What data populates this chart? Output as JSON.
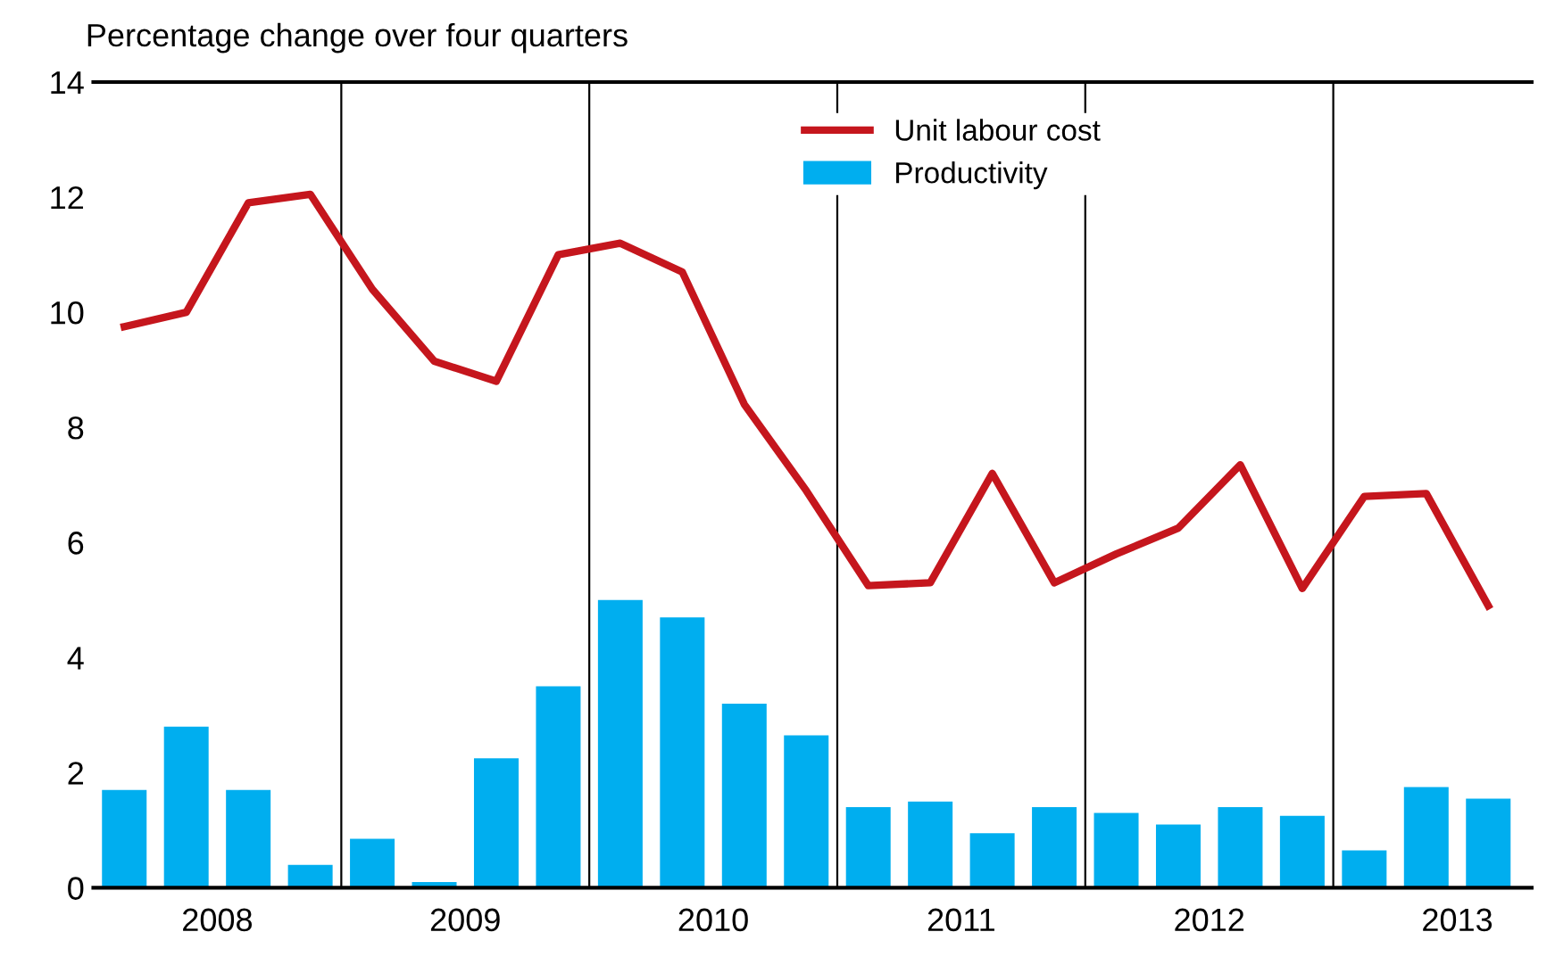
{
  "chart_data": {
    "type": "bar",
    "ylabel": "Percentage change over four quarters",
    "x": [
      2008.125,
      2008.375,
      2008.625,
      2008.875,
      2009.125,
      2009.375,
      2009.625,
      2009.875,
      2010.125,
      2010.375,
      2010.625,
      2010.875,
      2011.125,
      2011.375,
      2011.625,
      2011.875,
      2012.125,
      2012.375,
      2012.625,
      2012.875,
      2013.125,
      2013.375,
      2013.625
    ],
    "xlim": [
      2008,
      2013.8
    ],
    "xticks": [
      {
        "value": 2008.5,
        "label": "2008"
      },
      {
        "value": 2009.5,
        "label": "2009"
      },
      {
        "value": 2010.5,
        "label": "2010"
      },
      {
        "value": 2011.5,
        "label": "2011"
      },
      {
        "value": 2012.5,
        "label": "2012"
      },
      {
        "value": 2013.5,
        "label": "2013"
      }
    ],
    "ylim": [
      0,
      14
    ],
    "yticks": [
      0,
      2,
      4,
      6,
      8,
      10,
      12,
      14
    ],
    "series": [
      {
        "name": "Unit labour cost",
        "type": "line",
        "color": "#c5161d",
        "values": [
          9.75,
          10.0,
          11.9,
          12.05,
          10.4,
          9.15,
          8.8,
          11.0,
          11.2,
          10.7,
          8.4,
          6.9,
          5.25,
          5.3,
          7.2,
          5.3,
          5.8,
          6.25,
          7.35,
          5.2,
          6.8,
          6.85,
          4.9
        ]
      },
      {
        "name": "Productivity",
        "color": "#00aeef",
        "values": [
          1.7,
          2.8,
          1.7,
          0.4,
          0.85,
          0.1,
          2.25,
          3.5,
          5.0,
          4.7,
          3.2,
          2.65,
          1.4,
          1.5,
          0.95,
          1.4,
          1.3,
          1.1,
          1.4,
          1.25,
          0.65,
          1.75,
          1.55
        ]
      }
    ],
    "ref_lines": [
      {
        "axis": "x",
        "value": 2009,
        "color": "#000000"
      },
      {
        "axis": "x",
        "value": 2010,
        "color": "#000000"
      },
      {
        "axis": "x",
        "value": 2011,
        "color": "#000000"
      },
      {
        "axis": "x",
        "value": 2012,
        "color": "#000000"
      },
      {
        "axis": "x",
        "value": 2013,
        "color": "#000000"
      }
    ],
    "legend": "top",
    "grid": false
  }
}
